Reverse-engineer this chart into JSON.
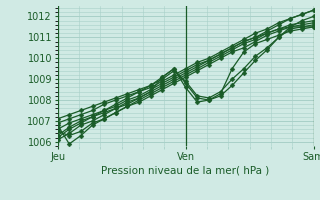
{
  "xlabel": "Pression niveau de la mer( hPa )",
  "ylim": [
    1005.8,
    1012.5
  ],
  "xlim": [
    0,
    48
  ],
  "yticks": [
    1006,
    1007,
    1008,
    1009,
    1010,
    1011,
    1012
  ],
  "xtick_positions": [
    0,
    24,
    48
  ],
  "xtick_labels": [
    "Jeu",
    "Ven",
    "Sam"
  ],
  "bg_color": "#d0eae4",
  "grid_color": "#a8d0c8",
  "line_color": "#1a5c28",
  "marker": "D",
  "marker_size": 2.5,
  "line_width": 0.9,
  "series": [
    [
      1006.1,
      1006.4,
      1006.8,
      1007.0,
      1007.3,
      1007.6,
      1007.9,
      1008.1,
      1008.4,
      1008.7,
      1009.0,
      1009.3,
      1009.6,
      1009.9,
      1010.2,
      1010.5,
      1010.8,
      1011.0,
      1011.3,
      1011.6,
      1011.9,
      1012.1,
      1012.3
    ],
    [
      1006.5,
      1006.3,
      1006.5,
      1006.9,
      1007.1,
      1007.4,
      1007.7,
      1008.0,
      1008.3,
      1008.6,
      1008.9,
      1009.2,
      1009.5,
      1009.8,
      1010.1,
      1010.4,
      1010.7,
      1010.9,
      1011.2,
      1011.4,
      1011.6,
      1011.7,
      1011.8
    ],
    [
      1006.8,
      1005.9,
      1006.3,
      1006.8,
      1007.1,
      1007.4,
      1007.7,
      1007.9,
      1008.2,
      1008.5,
      1008.8,
      1009.1,
      1009.4,
      1009.7,
      1010.0,
      1010.3,
      1010.5,
      1010.8,
      1011.1,
      1011.3,
      1011.5,
      1011.6,
      1011.7
    ],
    [
      1006.6,
      1006.9,
      1007.1,
      1007.3,
      1007.5,
      1007.7,
      1008.0,
      1008.2,
      1008.5,
      1008.8,
      1009.1,
      1009.4,
      1009.7,
      1009.9,
      1010.2,
      1010.5,
      1010.8,
      1011.0,
      1011.2,
      1011.4,
      1011.5,
      1011.5,
      1011.6
    ],
    [
      1006.3,
      1006.7,
      1007.0,
      1007.2,
      1007.4,
      1007.6,
      1007.8,
      1008.1,
      1008.4,
      1009.1,
      1009.5,
      1008.8,
      1008.1,
      1008.0,
      1008.2,
      1008.7,
      1009.3,
      1009.9,
      1010.4,
      1011.0,
      1011.5,
      1011.8,
      1012.0
    ],
    [
      1006.9,
      1007.1,
      1007.3,
      1007.5,
      1007.8,
      1008.0,
      1008.2,
      1008.4,
      1008.7,
      1009.1,
      1009.5,
      1008.6,
      1007.9,
      1008.0,
      1008.3,
      1009.5,
      1010.3,
      1010.7,
      1010.9,
      1011.1,
      1011.3,
      1011.4,
      1011.5
    ],
    [
      1007.1,
      1007.3,
      1007.5,
      1007.7,
      1007.9,
      1008.1,
      1008.3,
      1008.5,
      1008.7,
      1009.0,
      1009.4,
      1008.9,
      1008.2,
      1008.1,
      1008.4,
      1009.0,
      1009.5,
      1010.1,
      1010.5,
      1011.0,
      1011.4,
      1011.5,
      1011.5
    ],
    [
      1006.2,
      1006.6,
      1006.9,
      1007.2,
      1007.5,
      1007.8,
      1008.1,
      1008.4,
      1008.6,
      1008.9,
      1009.2,
      1009.5,
      1009.8,
      1010.0,
      1010.3,
      1010.6,
      1010.9,
      1011.2,
      1011.4,
      1011.7,
      1011.9,
      1012.1,
      1012.3
    ]
  ]
}
